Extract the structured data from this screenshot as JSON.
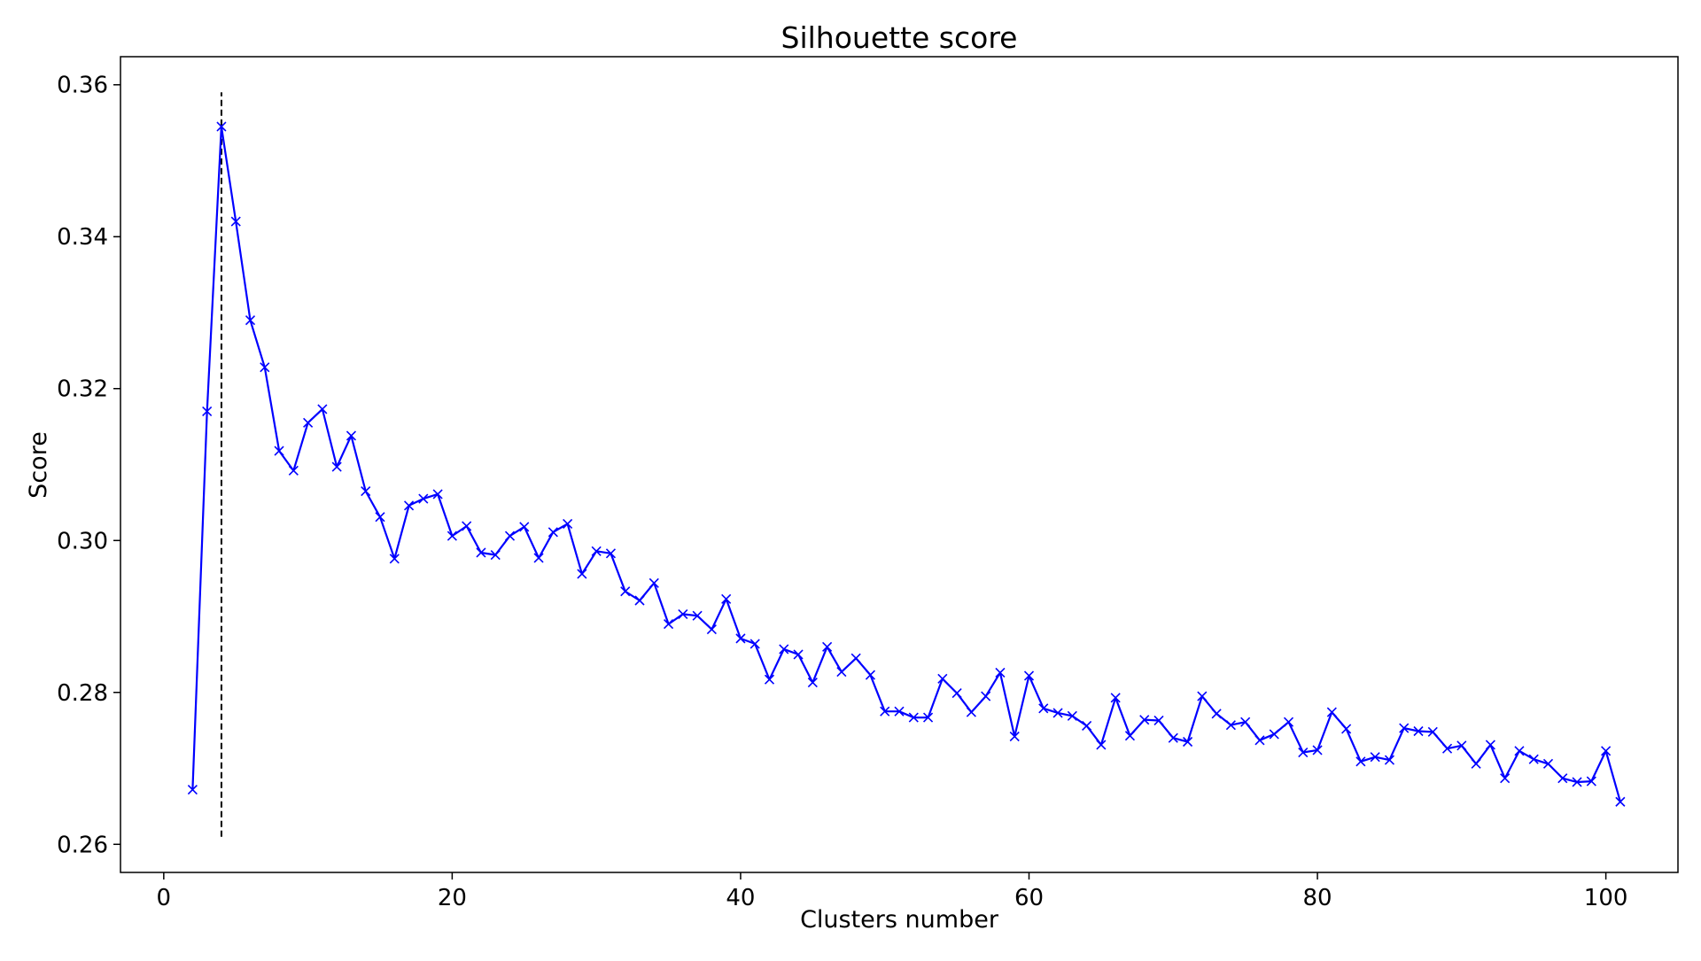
{
  "chart_data": {
    "type": "line",
    "title": "Silhouette score",
    "xlabel": "Clusters number",
    "ylabel": "Score",
    "xlim": [
      -3,
      105
    ],
    "ylim": [
      0.2563,
      0.3637
    ],
    "xticks": [
      0,
      20,
      40,
      60,
      80,
      100
    ],
    "yticks": [
      0.26,
      0.28,
      0.3,
      0.32,
      0.34,
      0.36
    ],
    "xtick_labels": [
      "0",
      "20",
      "40",
      "60",
      "80",
      "100"
    ],
    "ytick_labels": [
      "0.26",
      "0.28",
      "0.30",
      "0.32",
      "0.34",
      "0.36"
    ],
    "grid": false,
    "marker": "x",
    "reference_line": {
      "x": 4,
      "y_range": [
        0.261,
        0.359
      ],
      "style": "dashed",
      "color": "#000000"
    },
    "series": [
      {
        "color": "#0000ff",
        "x": [
          2,
          3,
          4,
          5,
          6,
          7,
          8,
          9,
          10,
          11,
          12,
          13,
          14,
          15,
          16,
          17,
          18,
          19,
          20,
          21,
          22,
          23,
          24,
          25,
          26,
          27,
          28,
          29,
          30,
          31,
          32,
          33,
          34,
          35,
          36,
          37,
          38,
          39,
          40,
          41,
          42,
          43,
          44,
          45,
          46,
          47,
          48,
          49,
          50,
          51,
          52,
          53,
          54,
          55,
          56,
          57,
          58,
          59,
          60,
          61,
          62,
          63,
          64,
          65,
          66,
          67,
          68,
          69,
          70,
          71,
          72,
          73,
          74,
          75,
          76,
          77,
          78,
          79,
          80,
          81,
          82,
          83,
          84,
          85,
          86,
          87,
          88,
          89,
          90,
          91,
          92,
          93,
          94,
          95,
          96,
          97,
          98,
          99,
          100,
          101
        ],
        "y": [
          0.2672,
          0.317,
          0.3545,
          0.342,
          0.329,
          0.3228,
          0.3118,
          0.3092,
          0.3155,
          0.3173,
          0.3097,
          0.3138,
          0.3065,
          0.3031,
          0.2976,
          0.3046,
          0.3055,
          0.3061,
          0.3006,
          0.3019,
          0.2984,
          0.2981,
          0.3006,
          0.3018,
          0.2977,
          0.3011,
          0.3022,
          0.2956,
          0.2986,
          0.2983,
          0.2933,
          0.2921,
          0.2944,
          0.289,
          0.2903,
          0.2901,
          0.2883,
          0.2923,
          0.2871,
          0.2864,
          0.2817,
          0.2857,
          0.285,
          0.2813,
          0.286,
          0.2827,
          0.2845,
          0.2823,
          0.2775,
          0.2775,
          0.2767,
          0.2767,
          0.2818,
          0.2799,
          0.2774,
          0.2795,
          0.2826,
          0.2742,
          0.2822,
          0.2779,
          0.2773,
          0.2769,
          0.2756,
          0.2731,
          0.2793,
          0.2743,
          0.2764,
          0.2763,
          0.274,
          0.2735,
          0.2795,
          0.2772,
          0.2757,
          0.2761,
          0.2737,
          0.2745,
          0.2761,
          0.2721,
          0.2724,
          0.2774,
          0.2752,
          0.2709,
          0.2715,
          0.2711,
          0.2753,
          0.2749,
          0.2748,
          0.2726,
          0.273,
          0.2706,
          0.2731,
          0.2687,
          0.2723,
          0.2712,
          0.2706,
          0.2687,
          0.2682,
          0.2683,
          0.2723,
          0.2656
        ]
      }
    ]
  }
}
